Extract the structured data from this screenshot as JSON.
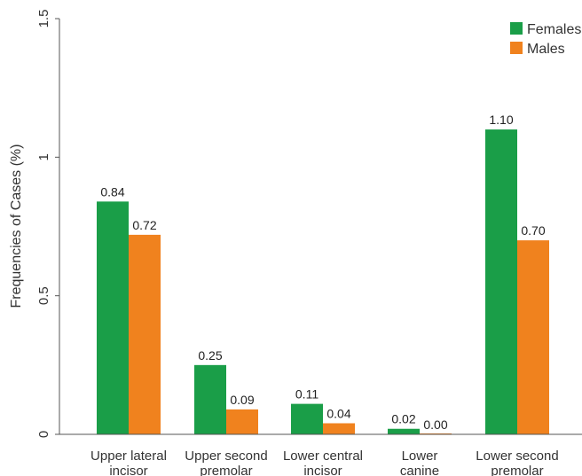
{
  "chart_data": {
    "type": "bar",
    "title": "",
    "xlabel": "",
    "ylabel": "Frequencies of Cases (%)",
    "ylim": [
      0,
      1.5
    ],
    "yticks": [
      "0",
      "0.5",
      "1",
      "1.5"
    ],
    "ytick_values": [
      0,
      0.5,
      1,
      1.5
    ],
    "grid": false,
    "legend_position": "top-right",
    "categories": [
      [
        "Upper lateral",
        "incisor"
      ],
      [
        "Upper second",
        "premolar"
      ],
      [
        "Lower central",
        "incisor"
      ],
      [
        "Lower",
        "canine"
      ],
      [
        "Lower second",
        "premolar"
      ]
    ],
    "series": [
      {
        "name": "Females",
        "color": "#1a9e48",
        "values": [
          0.84,
          0.25,
          0.11,
          0.02,
          1.1
        ],
        "labels": [
          "0.84",
          "0.25",
          "0.11",
          "0.02",
          "1.10"
        ]
      },
      {
        "name": "Males",
        "color": "#f0821e",
        "values": [
          0.72,
          0.09,
          0.04,
          0.0,
          0.7
        ],
        "labels": [
          "0.72",
          "0.09",
          "0.04",
          "0.00",
          "0.70"
        ]
      }
    ]
  }
}
